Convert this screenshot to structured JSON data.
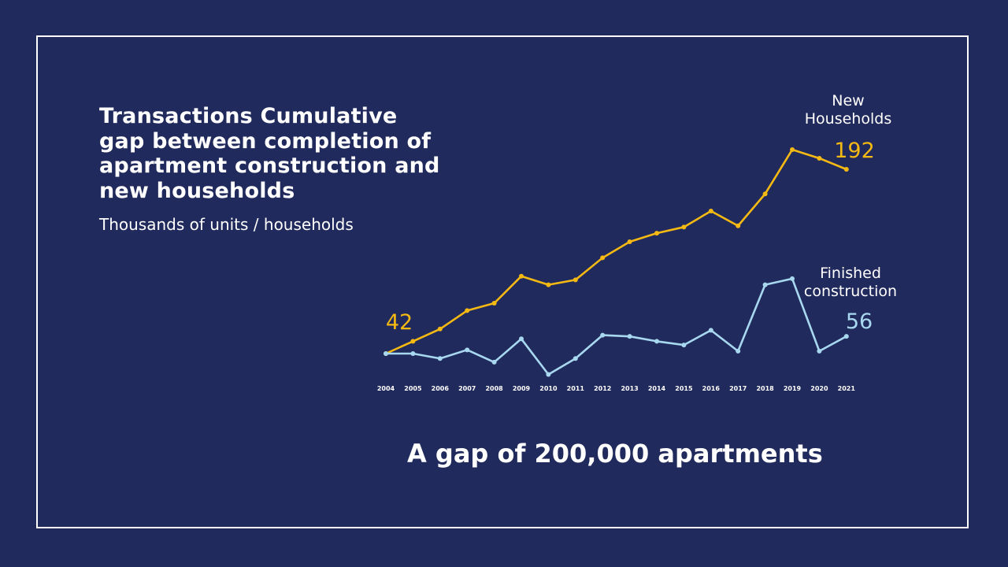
{
  "title": "Transactions Cumulative gap between completion of apartment construction and new households",
  "subtitle": "Thousands of units / households",
  "conclusion": "A gap of 200,000 apartments",
  "colors": {
    "background": "#212a5c",
    "frame": "#ffffff",
    "new_households": "#f5b914",
    "finished_construction": "#a8d8f0",
    "text": "#ffffff"
  },
  "chart_data": {
    "type": "line",
    "x": [
      "2004",
      "2005",
      "2006",
      "2007",
      "2008",
      "2009",
      "2010",
      "2011",
      "2012",
      "2013",
      "2014",
      "2015",
      "2016",
      "2017",
      "2018",
      "2019",
      "2020",
      "2021"
    ],
    "ylim": [
      0,
      200
    ],
    "grid": false,
    "series": [
      {
        "name": "New Households",
        "label_lines": [
          "New",
          "Households"
        ],
        "values": [
          42,
          52,
          62,
          77,
          83,
          105,
          98,
          102,
          120,
          133,
          140,
          145,
          158,
          146,
          172,
          208,
          201,
          192
        ],
        "start_label": "42",
        "end_label": "192"
      },
      {
        "name": "Finished construction",
        "label_lines": [
          "Finished",
          "construction"
        ],
        "values": [
          42,
          42,
          38,
          45,
          35,
          54,
          25,
          38,
          57,
          56,
          52,
          49,
          61,
          44,
          98,
          103,
          44,
          56
        ],
        "end_label": "56"
      }
    ]
  }
}
